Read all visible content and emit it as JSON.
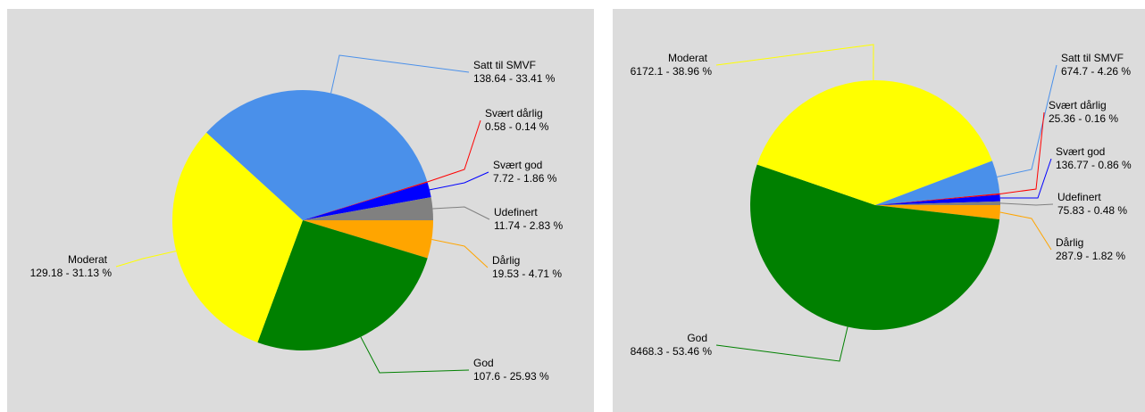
{
  "chart_data": [
    {
      "type": "pie",
      "categories": [
        "Dårlig",
        "God",
        "Moderat",
        "Satt til SMVF",
        "Svært dårlig",
        "Svært god",
        "Udefinert"
      ],
      "values": [
        19.53,
        107.6,
        129.18,
        138.64,
        0.58,
        7.72,
        11.74
      ],
      "value_labels": [
        "19.53 - 4.71 %",
        "107.6 - 25.93 %",
        "129.18 - 31.13 %",
        "138.64 - 33.41 %",
        "0.58 - 0.14 %",
        "7.72 - 1.86 %",
        "11.74 - 2.83 %"
      ],
      "colors": [
        "#ffa500",
        "#008000",
        "#ffff00",
        "#4a90ea",
        "#ff0000",
        "#0000ff",
        "#808080"
      ]
    },
    {
      "type": "pie",
      "categories": [
        "Dårlig",
        "God",
        "Moderat",
        "Satt til SMVF",
        "Svært dårlig",
        "Svært god",
        "Udefinert"
      ],
      "values": [
        287.9,
        8468.3,
        6172.1,
        674.7,
        25.36,
        136.77,
        75.83
      ],
      "value_labels": [
        "287.9 - 1.82 %",
        "8468.3 - 53.46 %",
        "6172.1 - 38.96 %",
        "674.7 - 4.26 %",
        "25.36 - 0.16 %",
        "136.77 - 0.86 %",
        "75.83 - 0.48 %"
      ],
      "colors": [
        "#ffa500",
        "#008000",
        "#ffff00",
        "#4a90ea",
        "#ff0000",
        "#0000ff",
        "#808080"
      ]
    }
  ]
}
